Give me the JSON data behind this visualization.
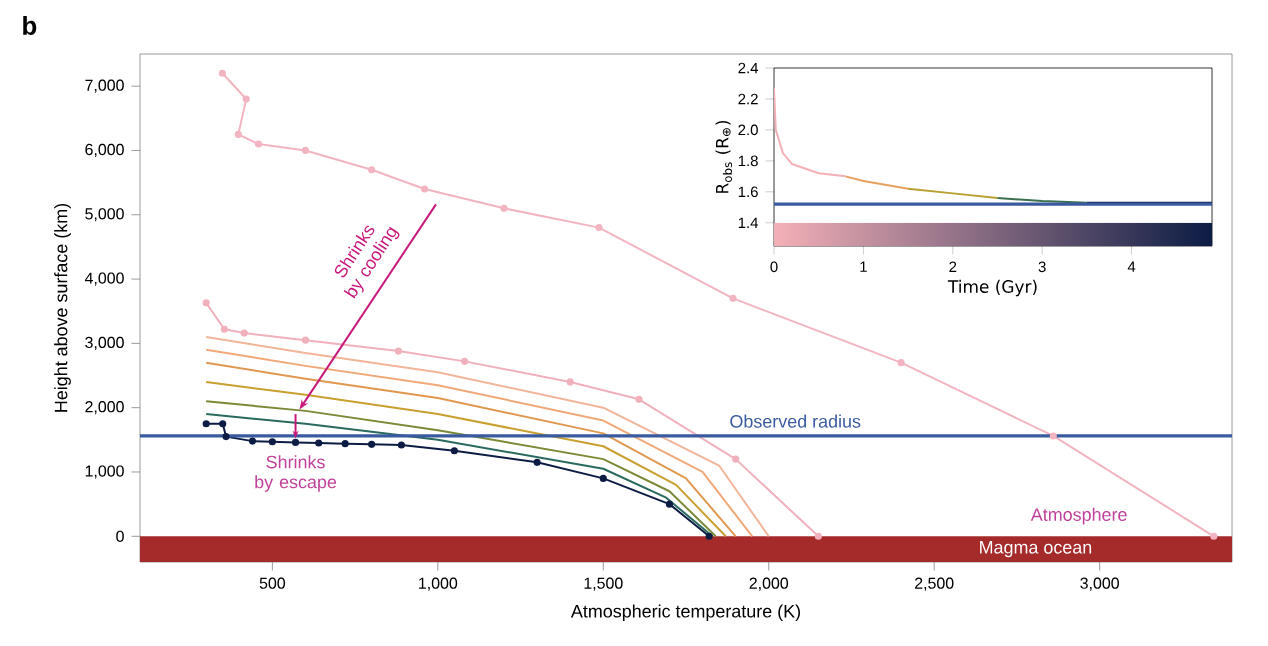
{
  "chart_data": [
    {
      "type": "line",
      "title": "b",
      "xlabel": "Atmospheric temperature (K)",
      "ylabel": "Height above surface (km)",
      "xlim": [
        100,
        3400
      ],
      "ylim": [
        -400,
        7500
      ],
      "xticks": [
        500,
        {
          "value": 1000,
          "label": "1,000"
        },
        {
          "value": 1500,
          "label": "1,500"
        },
        {
          "value": 2000,
          "label": "2,000"
        },
        {
          "value": 2500,
          "label": "2,500"
        },
        {
          "value": 3000,
          "label": "3,000"
        }
      ],
      "yticks": [
        0,
        {
          "value": 1000,
          "label": "1,000"
        },
        {
          "value": 2000,
          "label": "2,000"
        },
        {
          "value": 3000,
          "label": "3,000"
        },
        {
          "value": 4000,
          "label": "4,000"
        },
        {
          "value": 5000,
          "label": "5,000"
        },
        {
          "value": 6000,
          "label": "6,000"
        },
        {
          "value": 7000,
          "label": "7,000"
        }
      ],
      "series": [
        {
          "color": "#f2b4c0",
          "marker": "circle",
          "x": [
            349,
            421,
            397,
            458,
            600,
            800,
            960,
            1200,
            1487,
            1892,
            2400,
            2860,
            3345
          ],
          "values": [
            7200,
            6800,
            6250,
            6100,
            6000,
            5700,
            5400,
            5100,
            4800,
            3700,
            2700,
            1560,
            0
          ]
        },
        {
          "color": "#f0b0bc",
          "marker": "circle",
          "x": [
            300,
            355,
            415,
            600,
            881,
            1081,
            1400,
            1608,
            1900,
            2150
          ],
          "values": [
            3630,
            3220,
            3160,
            3050,
            2880,
            2720,
            2400,
            2130,
            1200,
            0
          ]
        },
        {
          "color": "#f2b49a",
          "marker": "none",
          "x": [
            300,
            600,
            1000,
            1500,
            1850,
            2000
          ],
          "values": [
            3100,
            2850,
            2550,
            2000,
            1100,
            0
          ]
        },
        {
          "color": "#f0a878",
          "marker": "none",
          "x": [
            300,
            600,
            1000,
            1500,
            1800,
            1950
          ],
          "values": [
            2900,
            2650,
            2350,
            1800,
            1000,
            0
          ]
        },
        {
          "color": "#e09850",
          "marker": "none",
          "x": [
            300,
            600,
            1000,
            1500,
            1750,
            1900
          ],
          "values": [
            2700,
            2450,
            2150,
            1600,
            900,
            0
          ]
        },
        {
          "color": "#c8a030",
          "marker": "none",
          "x": [
            300,
            600,
            1000,
            1500,
            1720,
            1870
          ],
          "values": [
            2400,
            2200,
            1900,
            1400,
            800,
            0
          ]
        },
        {
          "color": "#7a8a38",
          "marker": "none",
          "x": [
            300,
            600,
            1000,
            1500,
            1700,
            1840
          ],
          "values": [
            2100,
            1950,
            1650,
            1200,
            700,
            0
          ]
        },
        {
          "color": "#2a6a5e",
          "marker": "none",
          "x": [
            300,
            600,
            1000,
            1500,
            1690,
            1830
          ],
          "values": [
            1900,
            1750,
            1500,
            1050,
            600,
            0
          ]
        },
        {
          "color": "#0c1c44",
          "marker": "circle",
          "x": [
            300,
            350,
            360,
            440,
            500,
            570,
            640,
            720,
            800,
            890,
            1050,
            1300,
            1500,
            1700,
            1820
          ],
          "values": [
            1750,
            1750,
            1550,
            1480,
            1470,
            1460,
            1450,
            1440,
            1430,
            1420,
            1330,
            1150,
            900,
            500,
            0
          ]
        }
      ],
      "ref_lines": [
        {
          "axis": "y",
          "value": 1560,
          "label": "Observed radius",
          "color": "#3a5aa0"
        }
      ],
      "bands": [
        {
          "axis": "y",
          "from": -400,
          "to": 0,
          "label": "Magma ocean",
          "color": "#a52a2a"
        }
      ],
      "annotations": [
        "Shrinks by cooling",
        {
          "text": "Shrinks by escape",
          "x": 570,
          "y": 1520
        },
        "Atmosphere"
      ],
      "grid": false
    },
    {
      "type": "line",
      "xlabel": "Time (Gyr)",
      "ylabel": "R$_{obs}$ (R$_{⊕}$)",
      "xlim": [
        0,
        4.9
      ],
      "ylim": [
        1.25,
        2.4
      ],
      "xticks": [
        0,
        1,
        2,
        3,
        4
      ],
      "yticks": [
        {
          "value": 1.4,
          "label": "1.4"
        },
        {
          "value": 1.6,
          "label": "1.6"
        },
        {
          "value": 1.8,
          "label": "1.8"
        },
        {
          "value": 2,
          "label": "2.0"
        },
        {
          "value": 2.2,
          "label": "2.2"
        },
        {
          "value": 2.4,
          "label": "2.4"
        }
      ],
      "series": [
        {
          "color": "#f4b0b8",
          "x": [
            0,
            0.02,
            0.1,
            0.2,
            0.5,
            0.8
          ],
          "values": [
            2.27,
            2.0,
            1.85,
            1.78,
            1.72,
            1.7
          ]
        },
        {
          "color": "#e8a060",
          "x": [
            0.8,
            1.0,
            1.5
          ],
          "values": [
            1.7,
            1.67,
            1.62
          ]
        },
        {
          "color": "#b8a030",
          "x": [
            1.5,
            2,
            2.5
          ],
          "values": [
            1.62,
            1.59,
            1.56
          ]
        },
        {
          "color": "#3a7050",
          "x": [
            2.5,
            3,
            3.5
          ],
          "values": [
            1.56,
            1.54,
            1.53
          ]
        },
        {
          "color": "#0c1c44",
          "x": [
            3.5,
            4.9
          ],
          "values": [
            1.53,
            1.53
          ]
        }
      ],
      "ref_lines": [
        {
          "axis": "y",
          "value": 1.52,
          "color": "#3a5aa0"
        }
      ],
      "bands": [
        {
          "axis": "y",
          "from": 1.25,
          "to": 1.4
        }
      ],
      "grid": false
    }
  ]
}
